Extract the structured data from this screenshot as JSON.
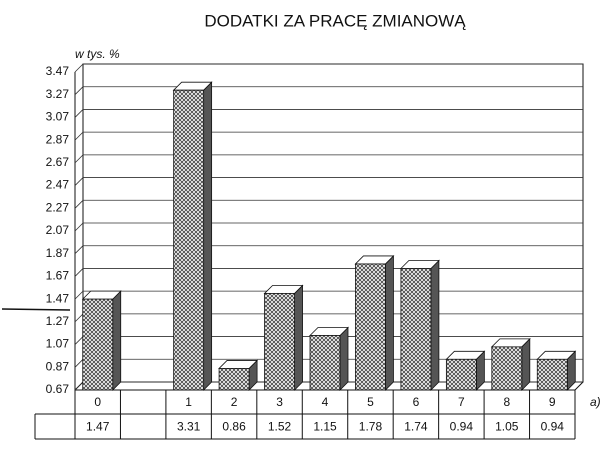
{
  "chart_data": {
    "type": "bar",
    "title": "DODATKI ZA PRACĘ ZMIANOWĄ",
    "y_label": "w tys. %",
    "annotation": "a)",
    "categories": [
      "0",
      null,
      "1",
      "2",
      "3",
      "4",
      "5",
      "6",
      "7",
      "8",
      "9"
    ],
    "values": [
      1.47,
      null,
      3.31,
      0.86,
      1.52,
      1.15,
      1.78,
      1.74,
      0.94,
      1.05,
      0.94
    ],
    "color": "#555555",
    "ylim": [
      0.67,
      3.47
    ],
    "yticks": [
      0.67,
      0.87,
      1.07,
      1.27,
      1.47,
      1.67,
      1.87,
      2.07,
      2.27,
      2.47,
      2.67,
      2.87,
      3.07,
      3.27,
      3.47
    ],
    "grid": true,
    "data_table": true
  }
}
